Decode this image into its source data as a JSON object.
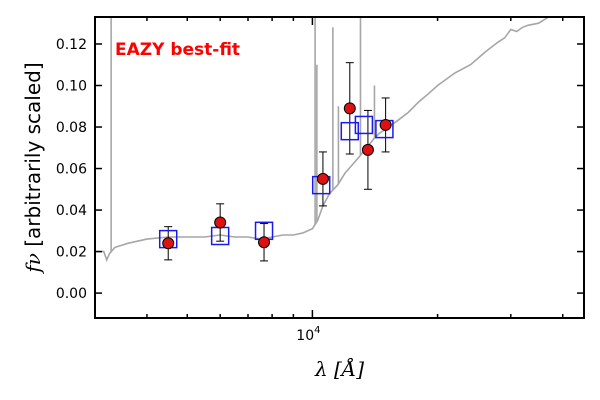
{
  "chart_data": {
    "type": "scatter",
    "xscale": "log",
    "xlim": [
      3000,
      45000
    ],
    "ylim": [
      -0.012,
      0.133
    ],
    "x_tick_labels": [
      {
        "x": 10000,
        "base": "10",
        "exp": "4"
      }
    ],
    "y_ticks": [
      0.0,
      0.02,
      0.04,
      0.06,
      0.08,
      0.1,
      0.12
    ],
    "y_tick_labels": [
      "0.00",
      "0.02",
      "0.04",
      "0.06",
      "0.08",
      "0.10",
      "0.12"
    ],
    "xlabel": {
      "symbol": "λ",
      "unit": "[Å]"
    },
    "ylabel": {
      "symbol": "fν",
      "text": "[arbitrarily scaled]"
    },
    "annotation": {
      "text": "EAZY best-fit",
      "color": "#ff0000"
    },
    "colors": {
      "sed_line": "#a6a6a6",
      "observed_marker": "#dd1111",
      "model_marker": "#1a1aee",
      "errorbar": "#000000"
    },
    "observed_photometry": [
      {
        "x": 4500,
        "y": 0.024,
        "yerr": 0.008
      },
      {
        "x": 6000,
        "y": 0.034,
        "yerr": 0.009
      },
      {
        "x": 7650,
        "y": 0.0245,
        "yerr": 0.009
      },
      {
        "x": 10600,
        "y": 0.055,
        "yerr": 0.013
      },
      {
        "x": 12300,
        "y": 0.089,
        "yerr": 0.022
      },
      {
        "x": 13600,
        "y": 0.069,
        "yerr": 0.019
      },
      {
        "x": 15000,
        "y": 0.081,
        "yerr": 0.013
      }
    ],
    "model_photometry": [
      {
        "x": 4500,
        "y": 0.026
      },
      {
        "x": 6000,
        "y": 0.0275
      },
      {
        "x": 7650,
        "y": 0.03
      },
      {
        "x": 10500,
        "y": 0.052
      },
      {
        "x": 12300,
        "y": 0.078
      },
      {
        "x": 13300,
        "y": 0.081
      },
      {
        "x": 14900,
        "y": 0.079
      }
    ],
    "best_fit_sed": [
      [
        3000,
        0.02
      ],
      [
        3150,
        0.02
      ],
      [
        3200,
        0.016
      ],
      [
        3250,
        0.019
      ],
      [
        3350,
        0.022
      ],
      [
        3600,
        0.024
      ],
      [
        4000,
        0.026
      ],
      [
        4500,
        0.027
      ],
      [
        5000,
        0.027
      ],
      [
        5500,
        0.027
      ],
      [
        6000,
        0.028
      ],
      [
        6500,
        0.027
      ],
      [
        7000,
        0.027
      ],
      [
        7500,
        0.026
      ],
      [
        8000,
        0.027
      ],
      [
        8500,
        0.028
      ],
      [
        9000,
        0.028
      ],
      [
        9500,
        0.029
      ],
      [
        10000,
        0.031
      ],
      [
        10300,
        0.035
      ],
      [
        10600,
        0.042
      ],
      [
        11000,
        0.048
      ],
      [
        11500,
        0.052
      ],
      [
        12000,
        0.058
      ],
      [
        12500,
        0.062
      ],
      [
        13000,
        0.066
      ],
      [
        13500,
        0.07
      ],
      [
        14000,
        0.074
      ],
      [
        14500,
        0.077
      ],
      [
        15000,
        0.079
      ],
      [
        16000,
        0.083
      ],
      [
        17000,
        0.087
      ],
      [
        18000,
        0.092
      ],
      [
        19000,
        0.096
      ],
      [
        20000,
        0.1
      ],
      [
        22000,
        0.106
      ],
      [
        24000,
        0.11
      ],
      [
        26000,
        0.116
      ],
      [
        28000,
        0.121
      ],
      [
        29000,
        0.123
      ],
      [
        30000,
        0.127
      ],
      [
        31000,
        0.126
      ],
      [
        32000,
        0.128
      ],
      [
        33000,
        0.129
      ],
      [
        35000,
        0.13
      ],
      [
        37000,
        0.133
      ]
    ],
    "emission_lines": [
      {
        "x": 3280,
        "peak": 0.133
      },
      {
        "x": 10150,
        "peak": 0.133
      },
      {
        "x": 10250,
        "peak": 0.11
      },
      {
        "x": 11200,
        "peak": 0.128
      },
      {
        "x": 11550,
        "peak": 0.09
      },
      {
        "x": 13050,
        "peak": 0.133
      },
      {
        "x": 14100,
        "peak": 0.1
      }
    ]
  }
}
